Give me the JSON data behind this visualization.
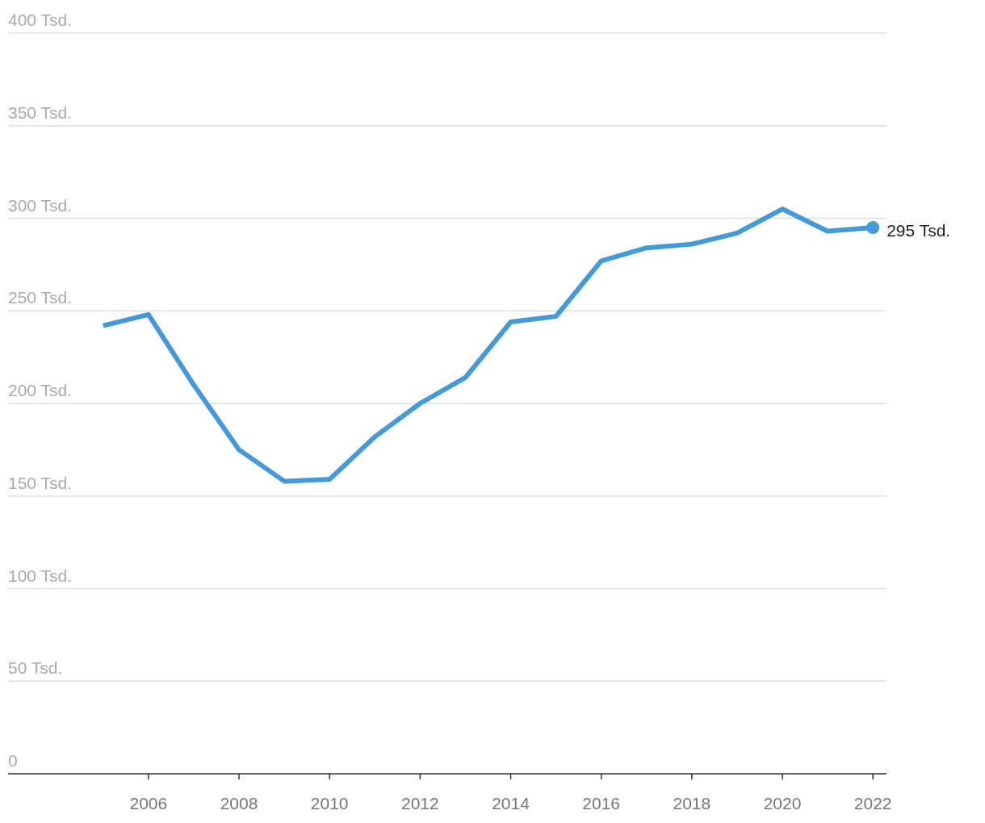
{
  "chart_data": {
    "type": "line",
    "x": [
      2005,
      2006,
      2007,
      2008,
      2009,
      2010,
      2011,
      2012,
      2013,
      2014,
      2015,
      2016,
      2017,
      2018,
      2019,
      2020,
      2021,
      2022
    ],
    "series": [
      {
        "color": "#4499d8",
        "values": [
          242,
          248,
          210,
          175,
          158,
          159,
          182,
          200,
          214,
          244,
          247,
          277,
          284,
          286,
          292,
          305,
          293,
          295
        ],
        "value_labels": [
          null,
          null,
          null,
          null,
          null,
          null,
          null,
          null,
          null,
          null,
          null,
          null,
          null,
          null,
          null,
          null,
          null,
          "295 Tsd."
        ]
      }
    ],
    "xlim": [
      2002.9,
      2022.3
    ],
    "xticks": [
      2006,
      2008,
      2010,
      2012,
      2014,
      2016,
      2018,
      2020,
      2022
    ],
    "ylim": [
      0,
      400
    ],
    "yticks": [
      {
        "value": 0,
        "label": "0"
      },
      {
        "value": 50,
        "label": "50 Tsd."
      },
      {
        "value": 100,
        "label": "100 Tsd."
      },
      {
        "value": 150,
        "label": "150 Tsd."
      },
      {
        "value": 200,
        "label": "200 Tsd."
      },
      {
        "value": 250,
        "label": "250 Tsd."
      },
      {
        "value": 300,
        "label": "300 Tsd."
      },
      {
        "value": 350,
        "label": "350 Tsd."
      },
      {
        "value": 400,
        "label": "400 Tsd."
      }
    ],
    "grid": "y",
    "marker": "none",
    "line_style": "solid"
  }
}
